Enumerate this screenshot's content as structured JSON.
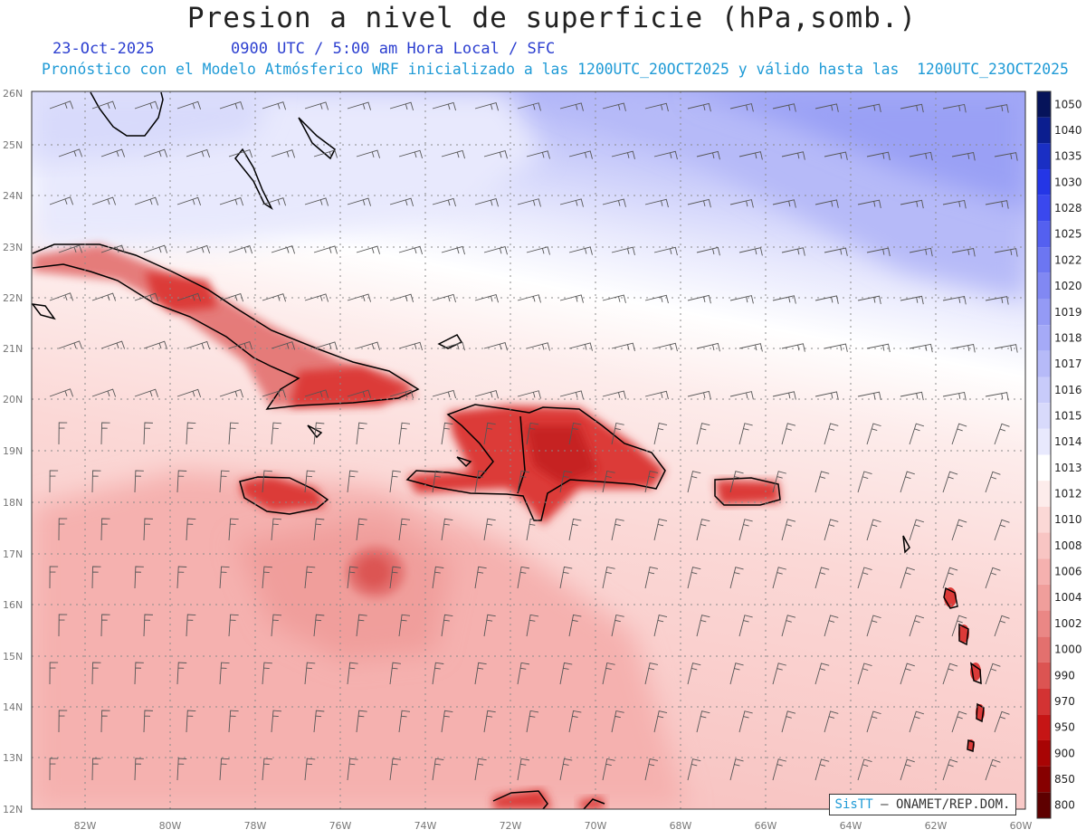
{
  "title": "Presion a nivel de superficie (hPa,somb.)",
  "date": "23-Oct-2025",
  "valid_time": "0900 UTC / 5:00 am Hora Local / SFC",
  "description": "Pronóstico con el Modelo Atmósferico WRF inicializado a las 1200UTC_20OCT2025 y válido hasta las  1200UTC_23OCT2025",
  "credit": {
    "brand": "SisTT",
    "text": "– ONAMET/REP.DOM."
  },
  "axes": {
    "lat_labels": [
      "26N",
      "25N",
      "24N",
      "23N",
      "22N",
      "21N",
      "20N",
      "19N",
      "18N",
      "17N",
      "16N",
      "15N",
      "14N",
      "13N",
      "12N"
    ],
    "lon_labels": [
      "82W",
      "80W",
      "78W",
      "76W",
      "74W",
      "72W",
      "70W",
      "68W",
      "66W",
      "64W",
      "62W",
      "60W"
    ]
  },
  "colorbar": {
    "levels": [
      "1050",
      "1040",
      "1035",
      "1030",
      "1028",
      "1025",
      "1022",
      "1020",
      "1019",
      "1018",
      "1017",
      "1016",
      "1015",
      "1014",
      "1013",
      "1012",
      "1010",
      "1008",
      "1006",
      "1004",
      "1002",
      "1000",
      "990",
      "970",
      "950",
      "900",
      "850",
      "800"
    ],
    "colors": [
      "#06135a",
      "#0b1e8f",
      "#1a2fc4",
      "#2436e6",
      "#3a48ee",
      "#5460f0",
      "#6c76f2",
      "#8188f3",
      "#949af5",
      "#a5aaf7",
      "#b6baf8",
      "#c8cbfa",
      "#d8dafb",
      "#e8e9fd",
      "#ffffff",
      "#fdeceb",
      "#fbd8d6",
      "#f8c5c3",
      "#f5b1af",
      "#f09e9b",
      "#ea8785",
      "#e3706e",
      "#dc5452",
      "#d33333",
      "#c61515",
      "#a80404",
      "#860000",
      "#5e0000"
    ]
  },
  "map_colors": {
    "high_pressure": "#9aa0f5",
    "low_pressure": "#e3242a",
    "coast": "#000000",
    "barb": "#555555",
    "grid": "#8a8a8a"
  }
}
